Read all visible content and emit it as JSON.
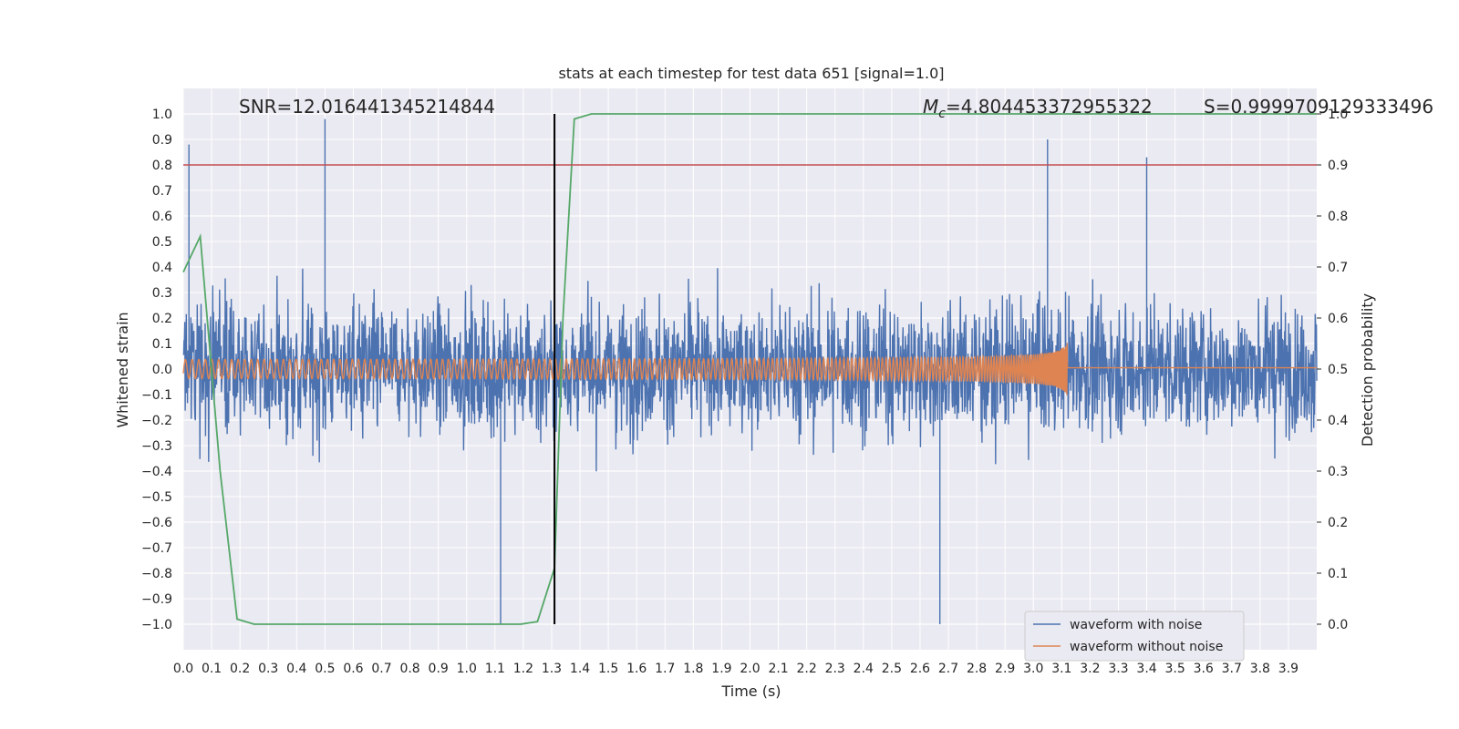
{
  "chart_data": {
    "type": "line",
    "title": "stats at each timestep for test data 651 [signal=1.0]",
    "xlabel": "Time (s)",
    "ylabel": "Whitened strain",
    "y2label": "Detection probability",
    "xlim": [
      0.0,
      4.0
    ],
    "ylim": [
      -1.1,
      1.1
    ],
    "y2lim": [
      -0.05,
      1.05
    ],
    "x_ticks": [
      "0.0",
      "0.1",
      "0.2",
      "0.3",
      "0.4",
      "0.5",
      "0.6",
      "0.7",
      "0.8",
      "0.9",
      "1.0",
      "1.1",
      "1.2",
      "1.3",
      "1.4",
      "1.5",
      "1.6",
      "1.7",
      "1.8",
      "1.9",
      "2.0",
      "2.1",
      "2.2",
      "2.3",
      "2.4",
      "2.5",
      "2.6",
      "2.7",
      "2.8",
      "2.9",
      "3.0",
      "3.1",
      "3.2",
      "3.3",
      "3.4",
      "3.5",
      "3.6",
      "3.7",
      "3.8",
      "3.9"
    ],
    "y_ticks": [
      "1.0",
      "0.9",
      "0.8",
      "0.7",
      "0.6",
      "0.5",
      "0.4",
      "0.3",
      "0.2",
      "0.1",
      "0.0",
      "−0.1",
      "−0.2",
      "−0.3",
      "−0.4",
      "−0.5",
      "−0.6",
      "−0.7",
      "−0.8",
      "−0.9",
      "−1.0"
    ],
    "y2_ticks": [
      "1.0",
      "0.9",
      "0.8",
      "0.7",
      "0.6",
      "0.5",
      "0.4",
      "0.3",
      "0.2",
      "0.1",
      "0.0"
    ],
    "grid": true,
    "legend_placement": "lower-right",
    "annotations": {
      "snr": "SNR=12.016441345214844",
      "mc_symbol": "M",
      "mc_subscript": "c",
      "mc_value": "=4.804453372955322",
      "s": "S=0.9999709129333496"
    },
    "threshold_line": {
      "y2": 0.9,
      "color": "#c44e52"
    },
    "vertical_line": {
      "x": 1.31,
      "color": "#000000"
    },
    "series": [
      {
        "name": "waveform with noise",
        "color": "#4c72b0",
        "axis": "left",
        "description_values": {
          "x_start": 0.0,
          "x_end": 4.0,
          "amplitude_typical": 0.45,
          "peaks": [
            [
              0.02,
              0.88
            ],
            [
              0.5,
              0.98
            ],
            [
              1.12,
              -1.0
            ],
            [
              2.67,
              -1.0
            ],
            [
              3.05,
              0.9
            ],
            [
              3.4,
              0.83
            ]
          ]
        }
      },
      {
        "name": "waveform without noise",
        "color": "#dd8452",
        "axis": "left",
        "description_values": {
          "x_start": 0.0,
          "x_end": 4.0,
          "merger_time": 3.12,
          "peak_amplitude": 0.36,
          "initial_amplitude": 0.05
        }
      },
      {
        "name": "",
        "color": "#55a868",
        "axis": "right",
        "x": [
          0.0,
          0.06,
          0.13,
          0.19,
          0.25,
          0.31,
          0.38,
          0.5,
          0.6,
          0.75,
          0.9,
          1.0,
          1.12,
          1.19,
          1.25,
          1.31,
          1.34,
          1.38,
          1.44,
          1.5,
          1.6,
          1.8,
          2.0,
          2.5,
          3.0,
          3.5,
          4.0
        ],
        "values": [
          0.69,
          0.76,
          0.3,
          0.01,
          0.0,
          0.0,
          0.0,
          0.0,
          0.0,
          0.0,
          0.0,
          0.0,
          0.0,
          0.0,
          0.005,
          0.11,
          0.6,
          0.99,
          1.0,
          1.0,
          1.0,
          1.0,
          1.0,
          1.0,
          1.0,
          1.0,
          1.0
        ]
      }
    ]
  },
  "legend": {
    "items": [
      {
        "label": "waveform with noise",
        "color": "#4c72b0"
      },
      {
        "label": "waveform without noise",
        "color": "#dd8452"
      }
    ]
  }
}
